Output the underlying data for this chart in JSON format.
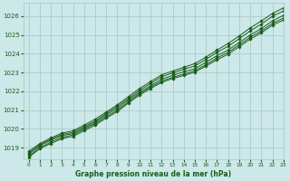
{
  "title": "Graphe pression niveau de la mer (hPa)",
  "bg_color": "#cce8e8",
  "grid_color": "#aacccc",
  "line_color": "#1a5c1a",
  "marker_color": "#1a5c1a",
  "xlim": [
    -0.5,
    23
  ],
  "ylim": [
    1018.4,
    1026.7
  ],
  "yticks": [
    1019,
    1020,
    1021,
    1022,
    1023,
    1024,
    1025,
    1026
  ],
  "xticks": [
    0,
    1,
    2,
    3,
    4,
    5,
    6,
    7,
    8,
    9,
    10,
    11,
    12,
    13,
    14,
    15,
    16,
    17,
    18,
    19,
    20,
    21,
    22,
    23
  ],
  "series": [
    [
      1018.65,
      1019.1,
      1019.4,
      1019.65,
      1019.75,
      1020.05,
      1020.35,
      1020.75,
      1021.1,
      1021.55,
      1021.95,
      1022.3,
      1022.65,
      1022.85,
      1023.05,
      1023.2,
      1023.55,
      1023.9,
      1024.2,
      1024.6,
      1025.0,
      1025.35,
      1025.75,
      1026.05
    ],
    [
      1018.72,
      1019.15,
      1019.45,
      1019.7,
      1019.82,
      1020.12,
      1020.42,
      1020.82,
      1021.2,
      1021.62,
      1022.05,
      1022.42,
      1022.78,
      1022.98,
      1023.18,
      1023.35,
      1023.7,
      1024.08,
      1024.4,
      1024.8,
      1025.22,
      1025.58,
      1026.0,
      1026.28
    ],
    [
      1018.55,
      1019.0,
      1019.3,
      1019.55,
      1019.68,
      1019.98,
      1020.28,
      1020.65,
      1021.0,
      1021.45,
      1021.88,
      1022.22,
      1022.55,
      1022.75,
      1022.92,
      1023.1,
      1023.42,
      1023.78,
      1024.08,
      1024.48,
      1024.88,
      1025.22,
      1025.62,
      1025.9
    ],
    [
      1018.48,
      1018.95,
      1019.22,
      1019.48,
      1019.6,
      1019.9,
      1020.2,
      1020.58,
      1020.92,
      1021.38,
      1021.8,
      1022.15,
      1022.48,
      1022.68,
      1022.85,
      1023.02,
      1023.35,
      1023.68,
      1023.98,
      1024.38,
      1024.78,
      1025.12,
      1025.52,
      1025.8
    ],
    [
      1018.8,
      1019.22,
      1019.52,
      1019.78,
      1019.9,
      1020.2,
      1020.52,
      1020.9,
      1021.28,
      1021.72,
      1022.15,
      1022.52,
      1022.88,
      1023.08,
      1023.28,
      1023.48,
      1023.82,
      1024.2,
      1024.55,
      1024.95,
      1025.38,
      1025.75,
      1026.15,
      1026.45
    ]
  ]
}
